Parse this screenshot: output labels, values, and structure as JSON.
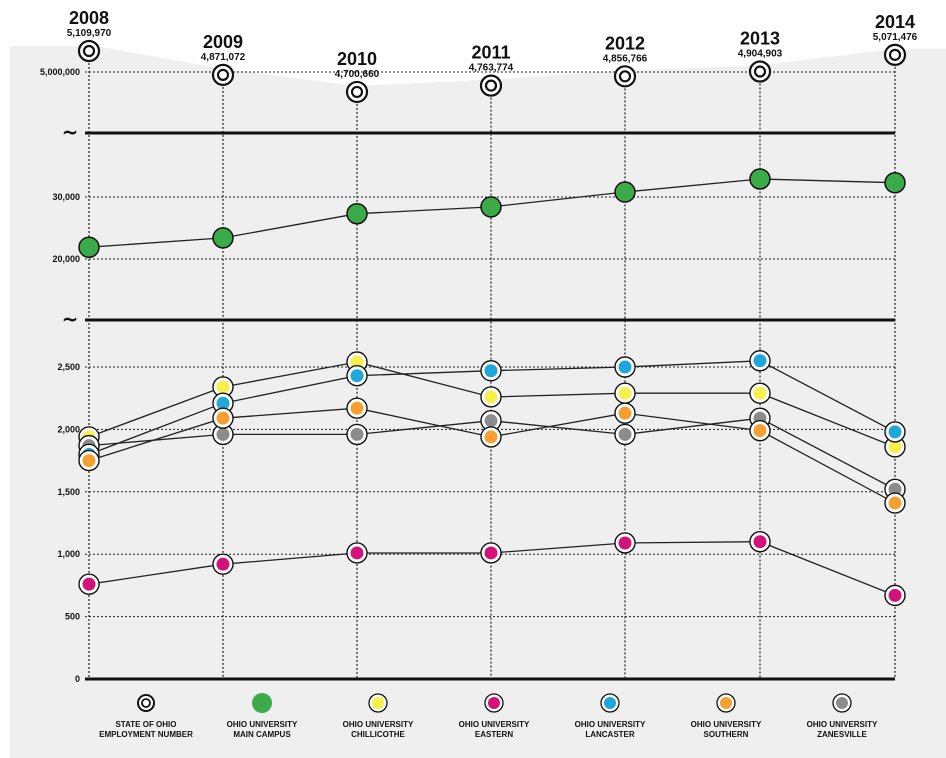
{
  "chart_data": {
    "type": "line",
    "years": [
      "2008",
      "2009",
      "2010",
      "2011",
      "2012",
      "2013",
      "2014"
    ],
    "colors": {
      "state": "#ffffff",
      "main": "#3bab4a",
      "chillicothe": "#f7ef4a",
      "eastern": "#d4117a",
      "lancaster": "#1ea7d8",
      "southern": "#f7a031",
      "zanesville": "#8c8c8c",
      "band": "#efefef"
    },
    "state_employment": {
      "name_lines": [
        "STATE OF OHIO",
        "EMPLOYMENT NUMBER"
      ],
      "values": [
        5109970,
        4871072,
        4700660,
        4763774,
        4856766,
        4904903,
        5071476
      ],
      "labels": [
        "5,109,970",
        "4,871,072",
        "4,700,660",
        "4,763,774",
        "4,856,766",
        "4,904,903",
        "5,071,476"
      ]
    },
    "main_campus": {
      "name_lines": [
        "OHIO UNIVERSITY",
        "MAIN CAMPUS"
      ],
      "values": [
        21900,
        23400,
        27300,
        28400,
        30800,
        32900,
        32300
      ]
    },
    "regional_series": [
      {
        "key": "chillicothe",
        "name_lines": [
          "OHIO UNIVERSITY",
          "CHILLICOTHE"
        ],
        "values": [
          1940,
          2340,
          2540,
          2260,
          2290,
          2290,
          1860
        ]
      },
      {
        "key": "eastern",
        "name_lines": [
          "OHIO UNIVERSITY",
          "EASTERN"
        ],
        "values": [
          760,
          920,
          1010,
          1010,
          1090,
          1100,
          670
        ]
      },
      {
        "key": "lancaster",
        "name_lines": [
          "OHIO UNIVERSITY",
          "LANCASTER"
        ],
        "values": [
          1800,
          2210,
          2430,
          2470,
          2500,
          2550,
          1980
        ]
      },
      {
        "key": "southern",
        "name_lines": [
          "OHIO UNIVERSITY",
          "SOUTHERN"
        ],
        "values": [
          1750,
          2090,
          2170,
          1940,
          2130,
          1990,
          1410
        ]
      },
      {
        "key": "zanesville",
        "name_lines": [
          "OHIO UNIVERSITY",
          "ZANESVILLE"
        ],
        "values": [
          1870,
          1960,
          1960,
          2070,
          1960,
          2090,
          1520
        ]
      }
    ],
    "y_ticks_top": [
      "5,000,000"
    ],
    "y_ticks_middle": [
      "30,000",
      "20,000"
    ],
    "y_ticks_bottom": [
      "2,500",
      "2,000",
      "1,500",
      "1,000",
      "500",
      "0"
    ],
    "break_symbol": "~",
    "grid": true
  }
}
